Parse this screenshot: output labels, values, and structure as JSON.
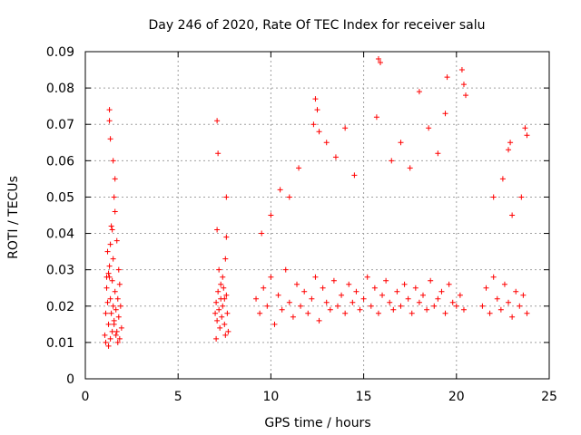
{
  "chart_data": {
    "type": "scatter",
    "title": "Day 246 of 2020, Rate Of TEC Index for receiver salu",
    "xlabel": "GPS time / hours",
    "ylabel": "ROTI / TECUs",
    "xlim": [
      0,
      25
    ],
    "ylim": [
      0,
      0.09
    ],
    "x_ticks": [
      0,
      5,
      10,
      15,
      20,
      25
    ],
    "y_ticks": [
      0,
      0.01,
      0.02,
      0.03,
      0.04,
      0.05,
      0.06,
      0.07,
      0.08,
      0.09
    ],
    "x_tick_labels": [
      "0",
      "5",
      "10",
      "15",
      "20",
      "25"
    ],
    "y_tick_labels": [
      "0",
      "0.01",
      "0.02",
      "0.03",
      "0.04",
      "0.05",
      "0.06",
      "0.07",
      "0.08",
      "0.09"
    ],
    "grid": true,
    "marker": "plus",
    "color": "#ff0000",
    "series": [
      {
        "x": [
          1.05,
          1.1,
          1.15,
          1.2,
          1.25,
          1.3,
          1.35,
          1.4,
          1.45,
          1.5,
          1.55,
          1.6,
          1.65,
          1.7,
          1.75,
          1.8,
          1.85,
          1.9,
          1.95,
          1.2,
          1.3,
          1.4,
          1.5,
          1.6,
          1.7,
          1.8,
          1.1,
          1.25,
          1.35,
          1.45,
          1.55,
          1.65,
          1.75,
          1.85,
          1.3,
          1.3,
          1.35,
          1.5,
          1.6,
          1.55,
          1.45,
          1.35,
          1.25,
          1.15,
          7.0,
          7.05,
          7.1,
          7.15,
          7.2,
          7.25,
          7.3,
          7.35,
          7.4,
          7.45,
          7.5,
          7.55,
          7.6,
          7.65,
          7.7,
          7.1,
          7.2,
          7.3,
          7.4,
          7.5,
          7.6,
          7.15,
          7.6,
          7.55,
          7.05,
          7.1,
          9.2,
          9.4,
          9.6,
          9.8,
          10.0,
          10.2,
          10.4,
          10.6,
          10.8,
          11.0,
          11.2,
          11.4,
          11.6,
          11.8,
          12.0,
          12.2,
          12.4,
          12.6,
          12.8,
          13.0,
          13.2,
          13.4,
          13.6,
          13.8,
          14.0,
          14.2,
          14.4,
          14.6,
          14.8,
          15.0,
          15.2,
          15.4,
          15.6,
          15.8,
          16.0,
          16.2,
          16.4,
          16.6,
          16.8,
          17.0,
          17.2,
          17.4,
          17.6,
          17.8,
          18.0,
          18.2,
          18.4,
          18.6,
          18.8,
          19.0,
          19.2,
          19.4,
          19.6,
          19.8,
          20.0,
          20.2,
          20.4,
          12.4,
          12.5,
          12.3,
          12.6,
          13.0,
          13.5,
          14.0,
          14.5,
          15.8,
          15.9,
          15.7,
          16.5,
          17.0,
          17.5,
          18.0,
          18.5,
          19.0,
          19.4,
          19.5,
          20.3,
          20.4,
          20.5,
          11.5,
          11.0,
          10.5,
          10.0,
          9.5,
          21.4,
          21.6,
          21.8,
          22.0,
          22.2,
          22.4,
          22.6,
          22.8,
          23.0,
          23.2,
          23.4,
          23.6,
          23.8,
          22.8,
          22.9,
          23.7,
          23.8,
          23.5,
          22.0,
          22.5,
          23.0
        ],
        "y": [
          0.012,
          0.018,
          0.025,
          0.021,
          0.015,
          0.031,
          0.022,
          0.018,
          0.027,
          0.02,
          0.016,
          0.024,
          0.019,
          0.013,
          0.022,
          0.017,
          0.026,
          0.02,
          0.014,
          0.035,
          0.028,
          0.042,
          0.033,
          0.046,
          0.038,
          0.03,
          0.01,
          0.009,
          0.011,
          0.013,
          0.015,
          0.012,
          0.01,
          0.011,
          0.074,
          0.071,
          0.066,
          0.06,
          0.055,
          0.05,
          0.041,
          0.037,
          0.029,
          0.028,
          0.018,
          0.021,
          0.016,
          0.024,
          0.019,
          0.014,
          0.022,
          0.017,
          0.02,
          0.025,
          0.015,
          0.012,
          0.023,
          0.018,
          0.013,
          0.041,
          0.03,
          0.026,
          0.028,
          0.022,
          0.05,
          0.062,
          0.039,
          0.033,
          0.011,
          0.071,
          0.022,
          0.018,
          0.025,
          0.02,
          0.028,
          0.015,
          0.023,
          0.019,
          0.03,
          0.021,
          0.017,
          0.026,
          0.02,
          0.024,
          0.018,
          0.022,
          0.028,
          0.016,
          0.025,
          0.021,
          0.019,
          0.027,
          0.02,
          0.023,
          0.018,
          0.026,
          0.021,
          0.024,
          0.019,
          0.022,
          0.028,
          0.02,
          0.025,
          0.018,
          0.023,
          0.027,
          0.021,
          0.019,
          0.024,
          0.02,
          0.026,
          0.022,
          0.018,
          0.025,
          0.021,
          0.023,
          0.019,
          0.027,
          0.02,
          0.022,
          0.024,
          0.018,
          0.026,
          0.021,
          0.02,
          0.023,
          0.019,
          0.077,
          0.074,
          0.07,
          0.068,
          0.065,
          0.061,
          0.069,
          0.056,
          0.088,
          0.087,
          0.072,
          0.06,
          0.065,
          0.058,
          0.079,
          0.069,
          0.062,
          0.073,
          0.083,
          0.085,
          0.081,
          0.078,
          0.058,
          0.05,
          0.052,
          0.045,
          0.04,
          0.02,
          0.025,
          0.018,
          0.028,
          0.022,
          0.019,
          0.026,
          0.021,
          0.017,
          0.024,
          0.02,
          0.023,
          0.018,
          0.063,
          0.065,
          0.069,
          0.067,
          0.05,
          0.05,
          0.055,
          0.045
        ]
      }
    ]
  }
}
